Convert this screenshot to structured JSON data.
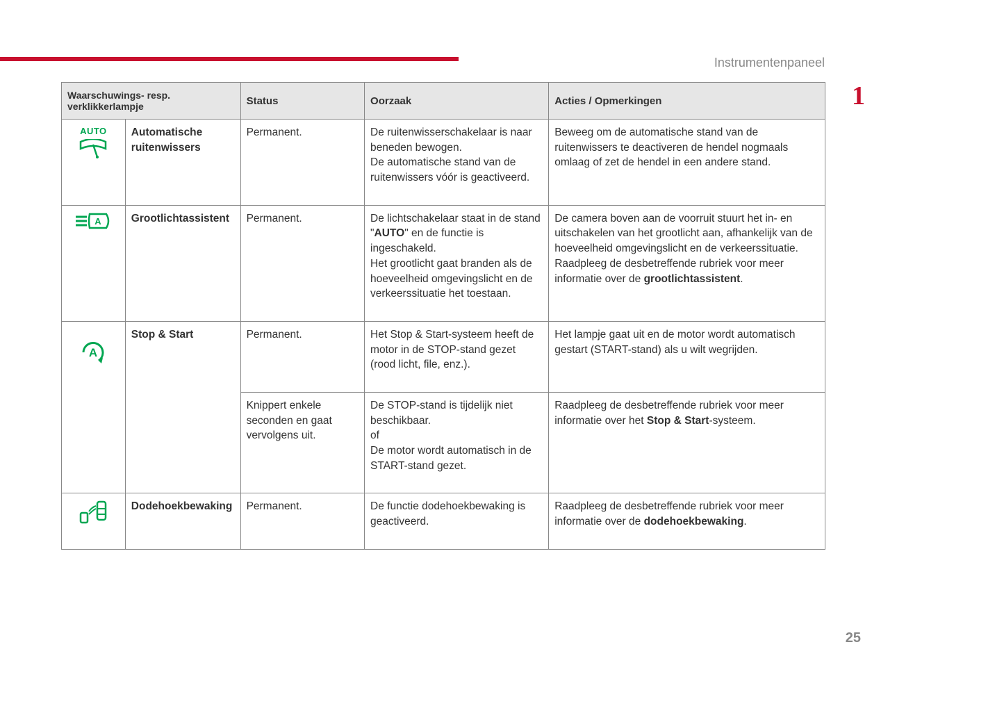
{
  "header": {
    "section_title": "Instrumentenpaneel",
    "chapter_number": "1",
    "page_number": "25"
  },
  "table": {
    "type": "table",
    "background_color": "#ffffff",
    "border_color": "#888888",
    "header_bg": "#e6e6e6",
    "text_color": "#333333",
    "icon_color": "#00a651",
    "accent_color": "#c8102e",
    "columns": [
      "Waarschuwings- resp. verklikkerlampje",
      "Status",
      "Oorzaak",
      "Acties / Opmerkingen"
    ],
    "rows": [
      {
        "icon": "auto-wipers",
        "icon_label_top": "AUTO",
        "name": "Automatische ruitenwissers",
        "status": "Permanent.",
        "cause": "De ruitenwisserschakelaar is naar beneden bewogen.\nDe automatische stand van de ruitenwissers vóór is geactiveerd.",
        "action": "Beweeg om de automatische stand van de ruitenwissers te deactiveren de hendel nogmaals omlaag of zet de hendel in een andere stand."
      },
      {
        "icon": "high-beam-assist",
        "name": "Grootlichtassistent",
        "status": "Permanent.",
        "cause_pre": "De lichtschakelaar staat in de stand \"",
        "cause_bold1": "AUTO",
        "cause_post": "\" en de functie is ingeschakeld.\nHet grootlicht gaat branden als de hoeveelheid omgevingslicht en de verkeerssituatie het toestaan.",
        "action_pre": "De camera boven aan de voorruit stuurt het in- en uitschakelen van het grootlicht aan, afhankelijk van de hoeveelheid omgevingslicht en de verkeerssituatie.\nRaadpleeg de desbetreffende rubriek voor meer informatie over de ",
        "action_bold": "grootlichtassistent",
        "action_post": "."
      },
      {
        "icon": "stop-start",
        "name": "Stop & Start",
        "sub": [
          {
            "status": "Permanent.",
            "cause": "Het Stop & Start-systeem heeft de motor in de STOP-stand gezet (rood licht, file, enz.).",
            "action": "Het lampje gaat uit en de motor wordt automatisch gestart (START-stand) als u wilt wegrijden."
          },
          {
            "status": "Knippert enkele seconden en gaat vervolgens uit.",
            "cause": "De STOP-stand is tijdelijk niet beschikbaar.\nof\nDe motor wordt automatisch in de START-stand gezet.",
            "action_pre": "Raadpleeg de desbetreffende rubriek voor meer informatie over het ",
            "action_bold": "Stop & Start",
            "action_post": "-systeem."
          }
        ]
      },
      {
        "icon": "blind-spot",
        "name": "Dodehoekbewaking",
        "status": "Permanent.",
        "cause": "De functie dodehoekbewaking is geactiveerd.",
        "action_pre": "Raadpleeg de desbetreffende rubriek voor meer informatie over de ",
        "action_bold": "dodehoekbewaking",
        "action_post": "."
      }
    ]
  }
}
